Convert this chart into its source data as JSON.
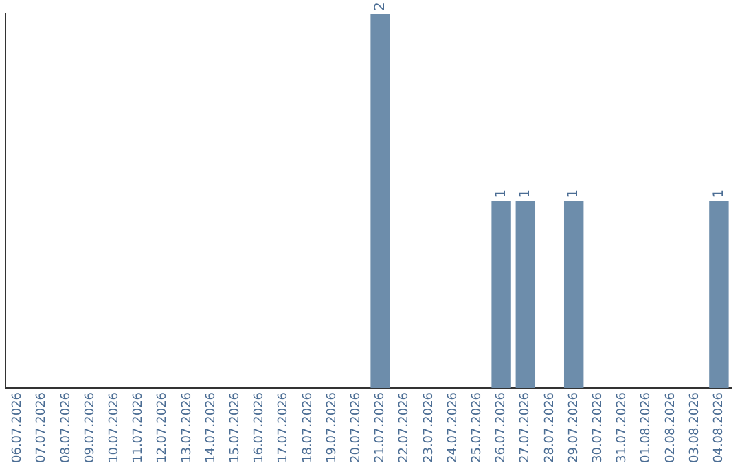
{
  "chart_data": {
    "type": "bar",
    "categories": [
      "06.07.2026",
      "07.07.2026",
      "08.07.2026",
      "09.07.2026",
      "10.07.2026",
      "11.07.2026",
      "12.07.2026",
      "13.07.2026",
      "14.07.2026",
      "15.07.2026",
      "16.07.2026",
      "17.07.2026",
      "18.07.2026",
      "19.07.2026",
      "20.07.2026",
      "21.07.2026",
      "22.07.2026",
      "23.07.2026",
      "24.07.2026",
      "25.07.2026",
      "26.07.2026",
      "27.07.2026",
      "28.07.2026",
      "29.07.2026",
      "30.07.2026",
      "31.07.2026",
      "01.08.2026",
      "02.08.2026",
      "03.08.2026",
      "04.08.2026"
    ],
    "values": [
      null,
      null,
      null,
      null,
      null,
      null,
      null,
      null,
      null,
      null,
      null,
      null,
      null,
      null,
      null,
      2,
      null,
      null,
      null,
      null,
      1,
      1,
      null,
      1,
      null,
      null,
      null,
      null,
      null,
      1
    ],
    "color": "#6d8dab",
    "data_labels": true,
    "grid": false,
    "legend": false,
    "tick_labels": "x"
  }
}
